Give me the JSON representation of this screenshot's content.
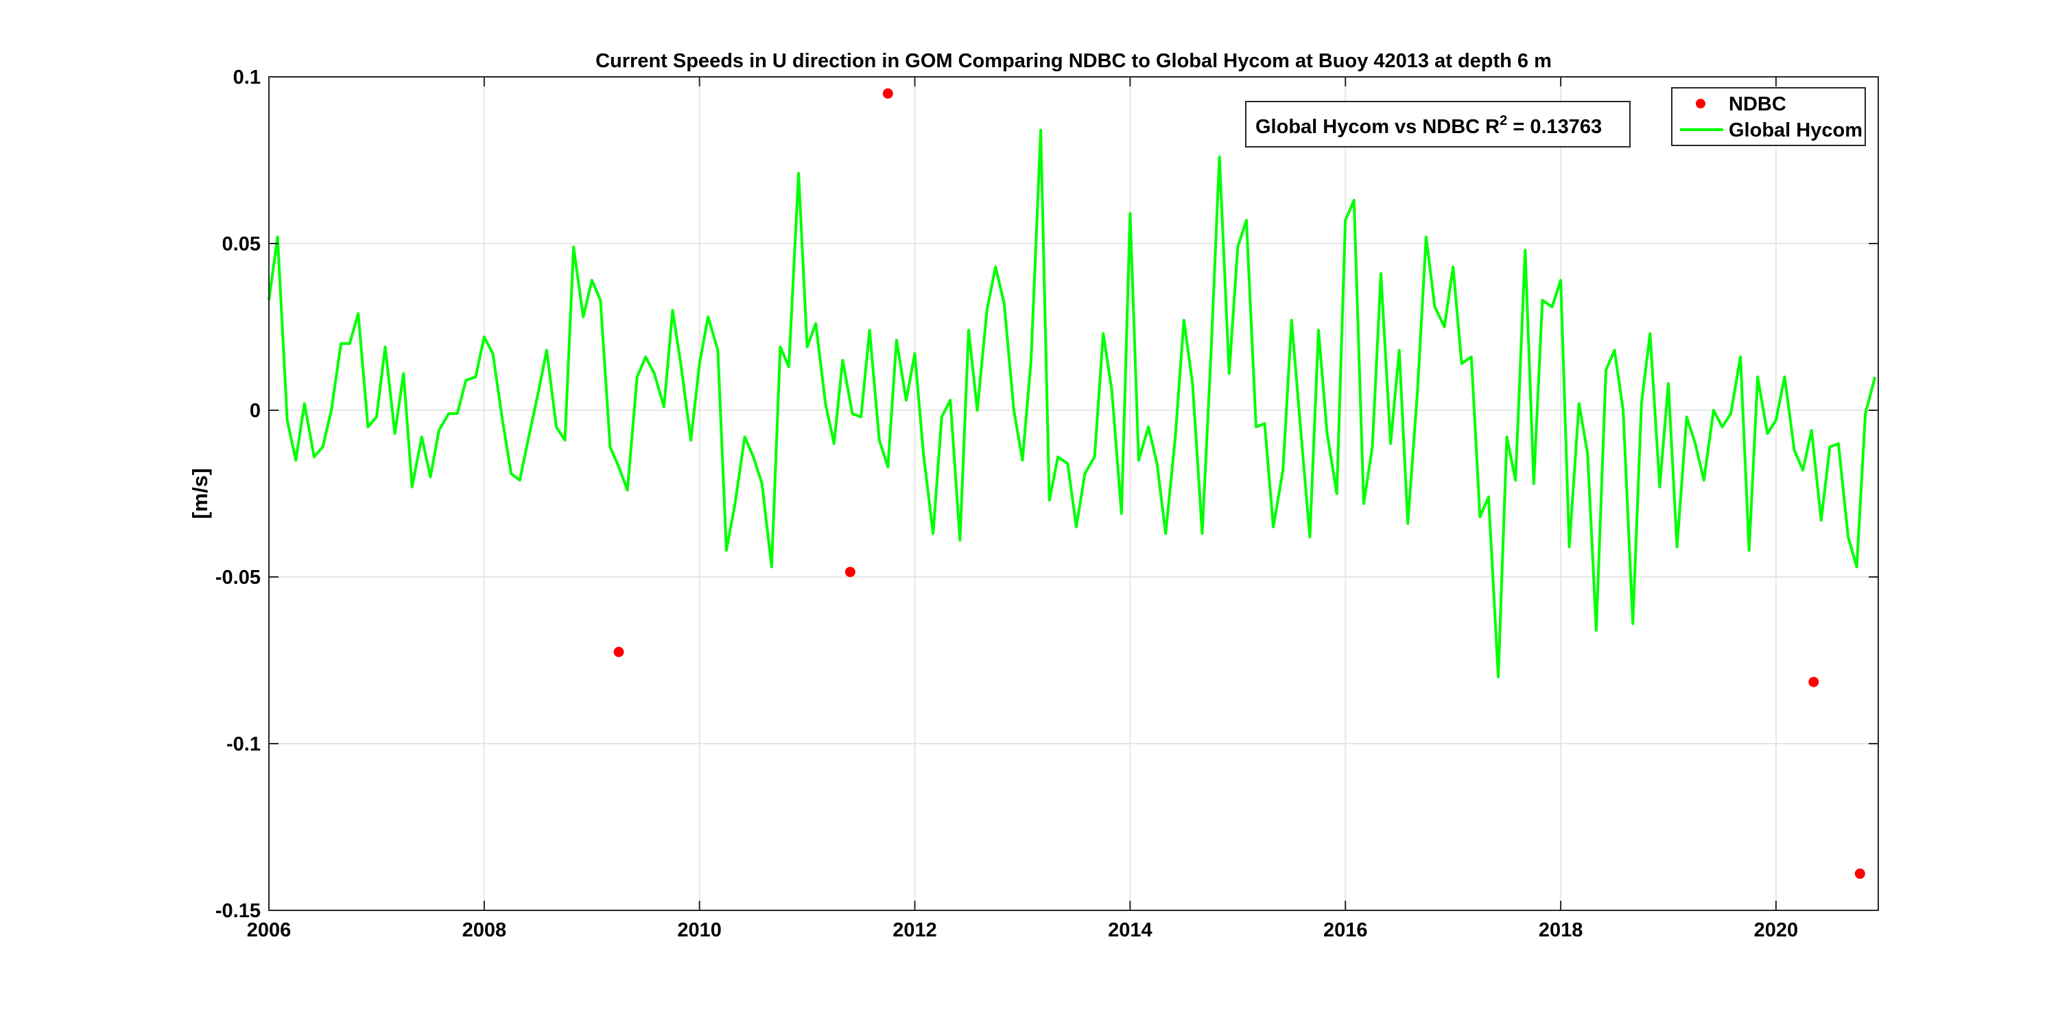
{
  "chart_data": {
    "type": "line",
    "title": "Current Speeds in U direction in GOM Comparing NDBC to Global Hycom at Buoy  42013  at depth  6 m",
    "xlabel": "",
    "ylabel": "[m/s]",
    "xlim": [
      2006,
      2020.95
    ],
    "ylim": [
      -0.15,
      0.1
    ],
    "grid": true,
    "xticks": [
      2006,
      2008,
      2010,
      2012,
      2014,
      2016,
      2018,
      2020
    ],
    "xtick_labels": [
      "2006",
      "2008",
      "2010",
      "2012",
      "2014",
      "2016",
      "2018",
      "2020"
    ],
    "yticks": [
      0.1,
      0.05,
      0,
      -0.05,
      -0.1,
      -0.15
    ],
    "ytick_labels": [
      "0.1",
      "0.05",
      "0",
      "-0.05",
      "-0.1",
      "-0.15"
    ],
    "legend_position": "top-right",
    "annotation": {
      "text": "Global Hycom vs NDBC R",
      "superscript": "2",
      "suffix": " = 0.13763"
    },
    "series": [
      {
        "name": "NDBC",
        "marker": "dot",
        "color": "#ff0000",
        "x": [
          2009.25,
          2011.4,
          2011.75,
          2020.35,
          2020.78
        ],
        "y": [
          -0.0725,
          -0.0485,
          0.095,
          -0.0815,
          -0.139
        ]
      },
      {
        "name": "Global Hycom",
        "color": "#00ff00",
        "x": [
          2006.0,
          2006.08,
          2006.17,
          2006.25,
          2006.33,
          2006.42,
          2006.5,
          2006.58,
          2006.67,
          2006.75,
          2006.83,
          2006.92,
          2007.0,
          2007.08,
          2007.17,
          2007.25,
          2007.33,
          2007.42,
          2007.5,
          2007.58,
          2007.67,
          2007.75,
          2007.83,
          2007.92,
          2008.0,
          2008.08,
          2008.17,
          2008.25,
          2008.33,
          2008.42,
          2008.5,
          2008.58,
          2008.67,
          2008.75,
          2008.83,
          2008.92,
          2009.0,
          2009.08,
          2009.17,
          2009.25,
          2009.33,
          2009.42,
          2009.5,
          2009.58,
          2009.67,
          2009.75,
          2009.83,
          2009.92,
          2010.0,
          2010.08,
          2010.17,
          2010.25,
          2010.33,
          2010.42,
          2010.5,
          2010.58,
          2010.67,
          2010.75,
          2010.83,
          2010.92,
          2011.0,
          2011.08,
          2011.17,
          2011.25,
          2011.33,
          2011.42,
          2011.5,
          2011.58,
          2011.67,
          2011.75,
          2011.83,
          2011.92,
          2012.0,
          2012.08,
          2012.17,
          2012.25,
          2012.33,
          2012.42,
          2012.5,
          2012.58,
          2012.67,
          2012.75,
          2012.83,
          2012.92,
          2013.0,
          2013.08,
          2013.17,
          2013.25,
          2013.33,
          2013.42,
          2013.5,
          2013.58,
          2013.67,
          2013.75,
          2013.83,
          2013.92,
          2014.0,
          2014.08,
          2014.17,
          2014.25,
          2014.33,
          2014.42,
          2014.5,
          2014.58,
          2014.67,
          2014.75,
          2014.83,
          2014.92,
          2015.0,
          2015.08,
          2015.17,
          2015.25,
          2015.33,
          2015.42,
          2015.5,
          2015.58,
          2015.67,
          2015.75,
          2015.83,
          2015.92,
          2016.0,
          2016.08,
          2016.17,
          2016.25,
          2016.33,
          2016.42,
          2016.5,
          2016.58,
          2016.67,
          2016.75,
          2016.83,
          2016.92,
          2017.0,
          2017.08,
          2017.17,
          2017.25,
          2017.33,
          2017.42,
          2017.5,
          2017.58,
          2017.67,
          2017.75,
          2017.83,
          2017.92,
          2018.0,
          2018.08,
          2018.17,
          2018.25,
          2018.33,
          2018.42,
          2018.5,
          2018.58,
          2018.67,
          2018.75,
          2018.83,
          2018.92,
          2019.0,
          2019.08,
          2019.17,
          2019.25,
          2019.33,
          2019.42,
          2019.5,
          2019.58,
          2019.67,
          2019.75,
          2019.83,
          2019.92,
          2020.0,
          2020.08,
          2020.17,
          2020.25,
          2020.33,
          2020.42,
          2020.5,
          2020.58,
          2020.67,
          2020.75,
          2020.83,
          2020.92
        ],
        "y": [
          0.033,
          0.052,
          -0.003,
          -0.015,
          0.002,
          -0.014,
          -0.011,
          0.0,
          0.02,
          0.02,
          0.029,
          -0.005,
          -0.002,
          0.019,
          -0.007,
          0.011,
          -0.023,
          -0.008,
          -0.02,
          -0.006,
          -0.001,
          -0.001,
          0.009,
          0.01,
          0.022,
          0.017,
          -0.003,
          -0.019,
          -0.021,
          -0.007,
          0.005,
          0.018,
          -0.005,
          -0.009,
          0.049,
          0.028,
          0.039,
          0.033,
          -0.011,
          -0.017,
          -0.024,
          0.01,
          0.016,
          0.011,
          0.001,
          0.03,
          0.013,
          -0.009,
          0.014,
          0.028,
          0.018,
          -0.042,
          -0.028,
          -0.008,
          -0.014,
          -0.022,
          -0.047,
          0.019,
          0.013,
          0.071,
          0.019,
          0.026,
          0.002,
          -0.01,
          0.015,
          -0.001,
          -0.002,
          0.024,
          -0.009,
          -0.017,
          0.021,
          0.003,
          0.017,
          -0.013,
          -0.037,
          -0.002,
          0.003,
          -0.039,
          0.024,
          0.0,
          0.03,
          0.043,
          0.032,
          0.0,
          -0.015,
          0.015,
          0.084,
          -0.027,
          -0.014,
          -0.016,
          -0.035,
          -0.019,
          -0.014,
          0.023,
          0.006,
          -0.031,
          0.059,
          -0.015,
          -0.005,
          -0.016,
          -0.037,
          -0.008,
          0.027,
          0.008,
          -0.037,
          0.016,
          0.076,
          0.011,
          0.049,
          0.057,
          -0.005,
          -0.004,
          -0.035,
          -0.018,
          0.027,
          -0.004,
          -0.038,
          0.024,
          -0.007,
          -0.025,
          0.057,
          0.063,
          -0.028,
          -0.011,
          0.041,
          -0.01,
          0.018,
          -0.034,
          0.006,
          0.052,
          0.031,
          0.025,
          0.043,
          0.014,
          0.016,
          -0.032,
          -0.026,
          -0.08,
          -0.008,
          -0.021,
          0.048,
          -0.022,
          0.033,
          0.031,
          0.039,
          -0.041,
          0.002,
          -0.013,
          -0.066,
          0.012,
          0.018,
          0.0,
          -0.064,
          0.002,
          0.023,
          -0.023,
          0.008,
          -0.041,
          -0.002,
          -0.01,
          -0.021,
          0.0,
          -0.005,
          -0.001,
          0.016,
          -0.042,
          0.01,
          -0.007,
          -0.003,
          0.01,
          -0.012,
          -0.018,
          -0.006,
          -0.033,
          -0.011,
          -0.01,
          -0.038,
          -0.047,
          -0.001,
          0.01
        ]
      }
    ]
  }
}
